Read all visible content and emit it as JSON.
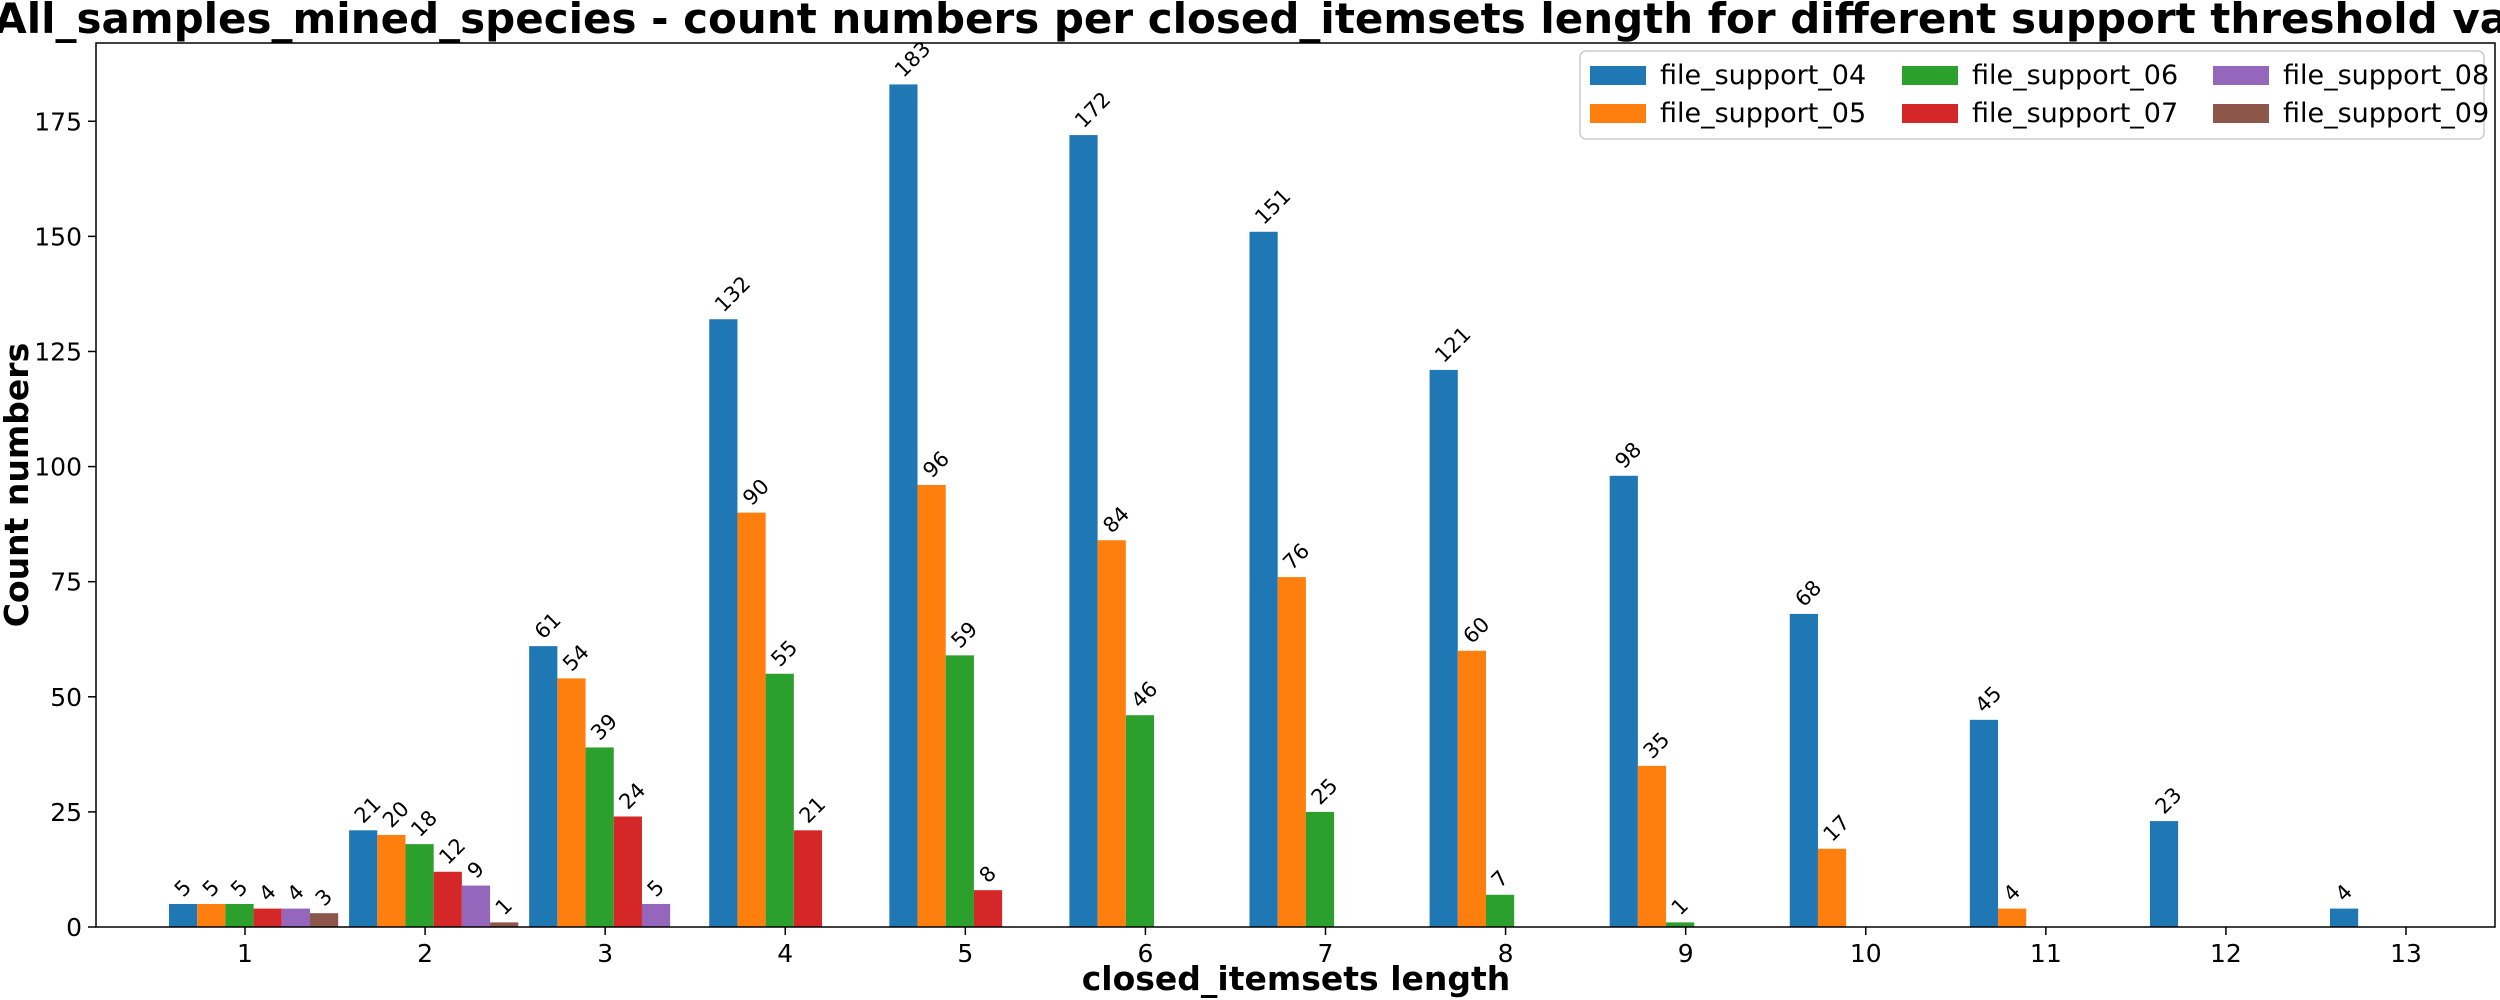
{
  "chart_data": {
    "type": "bar",
    "title": "All_samples_mined_species - count numbers per closed_itemsets length for different support threshold values",
    "xlabel": "closed_itemsets length",
    "ylabel": "Count numbers",
    "categories": [
      "1",
      "2",
      "3",
      "4",
      "5",
      "6",
      "7",
      "8",
      "9",
      "10",
      "11",
      "12",
      "13"
    ],
    "ylim": [
      0,
      192
    ],
    "yticks": [
      "0",
      "25",
      "50",
      "75",
      "100",
      "125",
      "150",
      "175"
    ],
    "grid": false,
    "legend_position": "top-right",
    "series": [
      {
        "name": "file_support_04",
        "color": "#1f77b4",
        "values": [
          5,
          21,
          61,
          132,
          183,
          172,
          151,
          121,
          98,
          68,
          45,
          23,
          4
        ]
      },
      {
        "name": "file_support_05",
        "color": "#ff7f0e",
        "values": [
          5,
          20,
          54,
          90,
          96,
          84,
          76,
          60,
          35,
          17,
          4,
          null,
          null
        ]
      },
      {
        "name": "file_support_06",
        "color": "#2ca02c",
        "values": [
          5,
          18,
          39,
          55,
          59,
          46,
          25,
          7,
          1,
          null,
          null,
          null,
          null
        ]
      },
      {
        "name": "file_support_07",
        "color": "#d62728",
        "values": [
          4,
          12,
          24,
          21,
          8,
          null,
          null,
          null,
          null,
          null,
          null,
          null,
          null
        ]
      },
      {
        "name": "file_support_08",
        "color": "#9467bd",
        "values": [
          4,
          9,
          5,
          null,
          null,
          null,
          null,
          null,
          null,
          null,
          null,
          null,
          null
        ]
      },
      {
        "name": "file_support_09",
        "color": "#8c564b",
        "values": [
          3,
          1,
          null,
          null,
          null,
          null,
          null,
          null,
          null,
          null,
          null,
          null,
          null
        ]
      }
    ]
  }
}
